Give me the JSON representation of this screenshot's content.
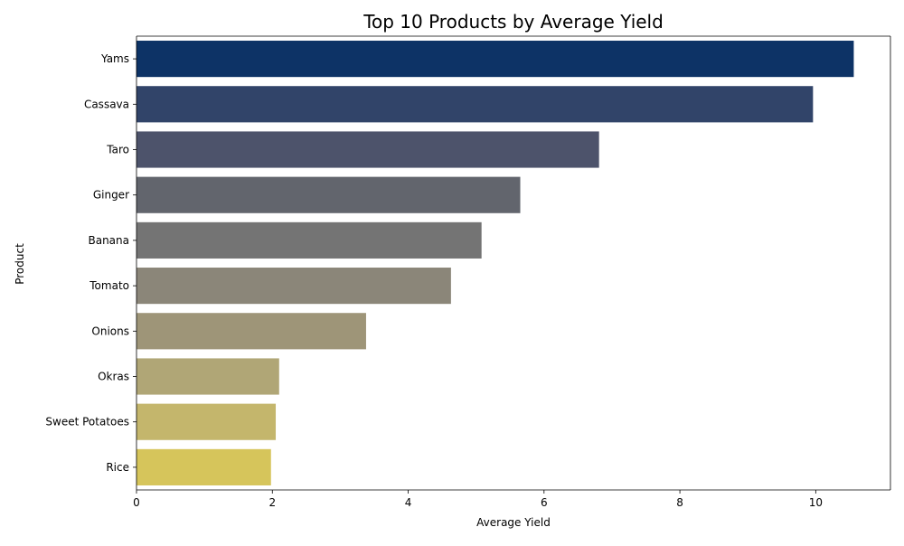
{
  "chart_data": {
    "type": "bar",
    "orientation": "horizontal",
    "title": "Top 10 Products by Average Yield",
    "xlabel": "Average Yield",
    "ylabel": "Product",
    "categories": [
      "Yams",
      "Cassava",
      "Taro",
      "Ginger",
      "Banana",
      "Tomato",
      "Onions",
      "Okras",
      "Sweet Potatoes",
      "Rice"
    ],
    "values": [
      10.56,
      9.96,
      6.81,
      5.65,
      5.08,
      4.63,
      3.38,
      2.1,
      2.05,
      1.98
    ],
    "xlim": [
      0,
      11.1
    ],
    "xticks": [
      0,
      2,
      4,
      6,
      8,
      10
    ],
    "grid": false,
    "legend": "none",
    "colors": [
      "#0d3366",
      "#314469",
      "#4d536b",
      "#62656d",
      "#747474",
      "#8b8679",
      "#9e9578",
      "#b0a676",
      "#c4b66c",
      "#d6c55b"
    ]
  }
}
